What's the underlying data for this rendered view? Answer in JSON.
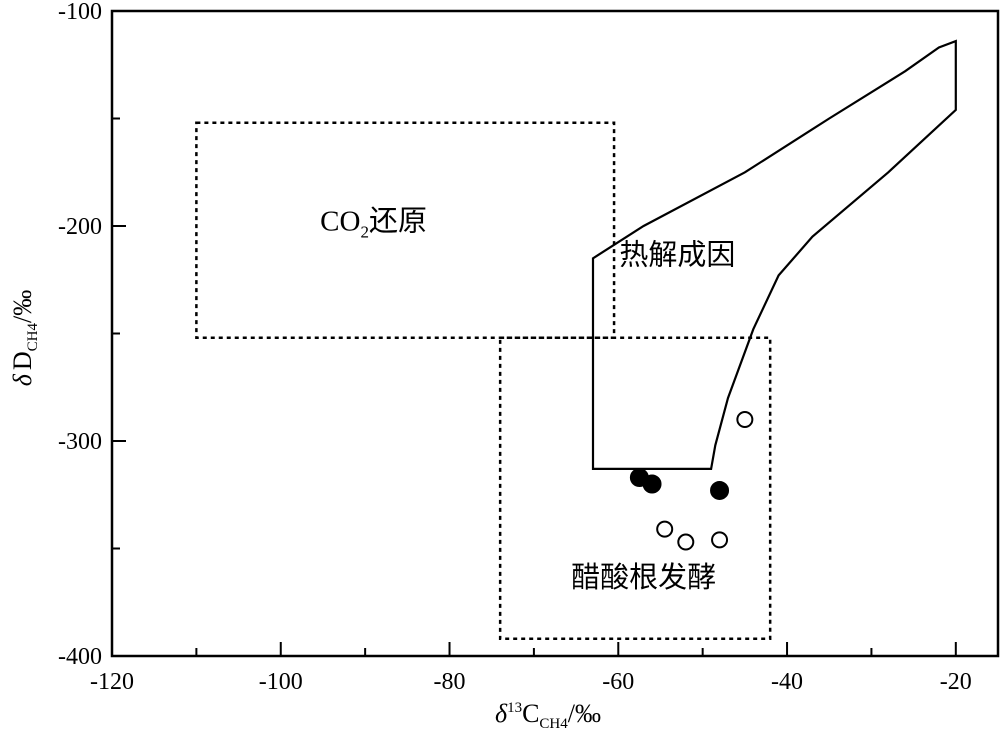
{
  "chart_data": {
    "type": "scatter",
    "xlabel": {
      "symbol": "δ",
      "superscript": "13",
      "main": "C",
      "subscript": "CH4",
      "unit": "/‰"
    },
    "ylabel": {
      "symbol": "δ",
      "main": "D",
      "subscript": "CH4",
      "unit": "/‰"
    },
    "xlim": [
      -120,
      -15
    ],
    "ylim": [
      -400,
      -100
    ],
    "x_ticks": [
      -120,
      -100,
      -80,
      -60,
      -40,
      -20
    ],
    "y_ticks": [
      -100,
      -200,
      -300,
      -400
    ],
    "x_tick_labels": [
      "-120",
      "-100",
      "-80",
      "-60",
      "-40",
      "-20"
    ],
    "y_tick_labels": [
      "-100",
      "-200",
      "-300",
      "-400"
    ],
    "grid": false,
    "regions": [
      {
        "id": "co2-reduction",
        "label": "CO₂还原",
        "label_main": "CO",
        "label_sub": "2",
        "label_rest": "还原",
        "style": "dotted",
        "x": [
          -110,
          -60.5
        ],
        "y": [
          -252,
          -152
        ],
        "label_at": [
          -89,
          -202
        ]
      },
      {
        "id": "acetate-fermentation",
        "label": "醋酸根发酵",
        "style": "dotted",
        "x": [
          -74,
          -42
        ],
        "y": [
          -392,
          -252
        ],
        "label_at": [
          -57,
          -368
        ]
      },
      {
        "id": "thermogenic",
        "label": "热解成因",
        "style": "solid",
        "polygon": [
          [
            -20,
            -114
          ],
          [
            -20,
            -146
          ],
          [
            -28,
            -175
          ],
          [
            -37,
            -205
          ],
          [
            -41,
            -223
          ],
          [
            -44,
            -248
          ],
          [
            -47,
            -280
          ],
          [
            -48.5,
            -302
          ],
          [
            -49,
            -313
          ],
          [
            -63,
            -313
          ],
          [
            -63,
            -215
          ],
          [
            -57,
            -200
          ],
          [
            -45,
            -175
          ],
          [
            -35,
            -150
          ],
          [
            -26,
            -128
          ],
          [
            -22,
            -117
          ],
          [
            -20,
            -114
          ]
        ],
        "label_at": [
          -53,
          -218
        ]
      }
    ],
    "series": [
      {
        "marker": "filled-circle",
        "points": [
          [
            -57.5,
            -317
          ],
          [
            -56,
            -320
          ],
          [
            -48,
            -323
          ]
        ]
      },
      {
        "marker": "open-circle",
        "points": [
          [
            -45,
            -290
          ],
          [
            -54.5,
            -341
          ],
          [
            -52,
            -347
          ],
          [
            -48,
            -346
          ]
        ]
      }
    ]
  },
  "colors": {
    "ink": "#000000",
    "background": "#ffffff"
  }
}
